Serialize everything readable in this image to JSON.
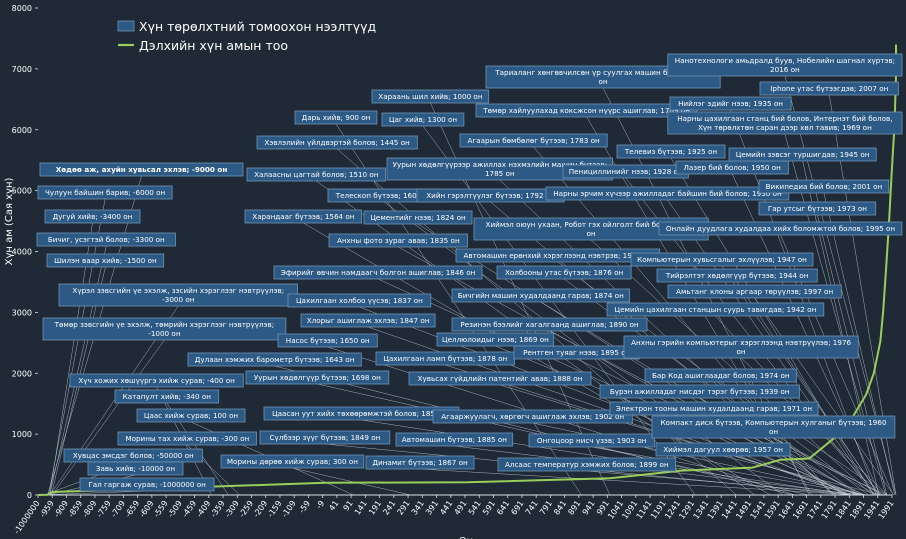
{
  "chart_data": {
    "type": "line",
    "title": "",
    "xlabel": "Он",
    "ylabel": "Хүн ам (Сая хүн)",
    "ylim": [
      0,
      8000
    ],
    "yticks": [
      0,
      1000,
      2000,
      3000,
      4000,
      5000,
      6000,
      7000,
      8000
    ],
    "xticks": [
      "-1000000",
      "-959",
      "-909",
      "-859",
      "-809",
      "-759",
      "-709",
      "-659",
      "-609",
      "-559",
      "-509",
      "-459",
      "-409",
      "-359",
      "-309",
      "-259",
      "-209",
      "-159",
      "-109",
      "-59",
      "-9",
      "41",
      "91",
      "141",
      "191",
      "241",
      "291",
      "341",
      "391",
      "441",
      "491",
      "541",
      "591",
      "641",
      "691",
      "741",
      "791",
      "841",
      "891",
      "941",
      "991",
      "1041",
      "1091",
      "1141",
      "1191",
      "1241",
      "1291",
      "1341",
      "1391",
      "1441",
      "1491",
      "1541",
      "1591",
      "1641",
      "1691",
      "1741",
      "1791",
      "1841",
      "1891",
      "1941",
      "1991"
    ],
    "legend": [
      {
        "label": "Хүн төрөлхтний томоохон нээлтүүд",
        "color": "#2c5a85"
      },
      {
        "label": "Дэлхийн хүн амын тоо",
        "color": "#9acd5a"
      }
    ],
    "series": [
      {
        "name": "Дэлхийн хүн амын тоо",
        "color": "#9acd5a",
        "points": [
          [
            -1000000,
            0
          ],
          [
            -10000,
            4
          ],
          [
            -1000,
            50
          ],
          [
            1,
            200
          ],
          [
            500,
            210
          ],
          [
            1000,
            275
          ],
          [
            1250,
            400
          ],
          [
            1500,
            450
          ],
          [
            1600,
            580
          ],
          [
            1700,
            600
          ],
          [
            1800,
            980
          ],
          [
            1850,
            1260
          ],
          [
            1900,
            1650
          ],
          [
            1927,
            2000
          ],
          [
            1950,
            2520
          ],
          [
            1960,
            3020
          ],
          [
            1970,
            3700
          ],
          [
            1980,
            4440
          ],
          [
            1990,
            5300
          ],
          [
            2000,
            6100
          ],
          [
            2010,
            6900
          ],
          [
            2016,
            7400
          ]
        ]
      }
    ],
    "annotations": [
      {
        "text": "Хөдөө аж, ахуйн хувьсал эхлэв; -9000 он",
        "year": -9000,
        "y": 5370,
        "bold": true
      },
      {
        "text": "Чулуун байшин барив; -6000 он",
        "year": -6000,
        "y": 4990
      },
      {
        "text": "Дугуй хийв; -3400 он",
        "year": -3400,
        "y": 4620
      },
      {
        "text": "Бичиг, усэгтэй болов; -3300 он",
        "year": -3300,
        "y": 4250
      },
      {
        "text": "Шилэн ваар хийв; -1500 он",
        "year": -1500,
        "y": 3880
      },
      {
        "text": "Хүрэл зэвсгийн үе эхэлж, зэсийн хэрэглээг нэвтрүүлэв; -3000 он",
        "year": -3000,
        "y": 3300
      },
      {
        "text": "Төмөр зэвсгийн үе эхэлж, төмрийн хэрэглээг нэвтрүүлэв; -1000 он",
        "year": -1000,
        "y": 2700
      },
      {
        "text": "Хүч хожих хөшүүргэ хийж сурав; -400 он",
        "year": -400,
        "y": 1910
      },
      {
        "text": "Катапулт хийв; -340 он",
        "year": -340,
        "y": 1640
      },
      {
        "text": "Цаас хийж сурав; 100 он",
        "year": 100,
        "y": 1330
      },
      {
        "text": "Морины тах хийж сурав; -300 он",
        "year": -300,
        "y": 940
      },
      {
        "text": "Хувцас эмсдэг болов; -50000 он",
        "year": -50000,
        "y": 680
      },
      {
        "text": "Завь хийв; -10000 он",
        "year": -10000,
        "y": 470
      },
      {
        "text": "Гал гаргаж сурав; -1000000 он",
        "year": -1000000,
        "y": 240
      },
      {
        "text": "Морины дөрөө хийж сурав; 300 он",
        "year": 300,
        "y": 560
      },
      {
        "text": "Дарь хийв; 900 он",
        "year": 900,
        "y": 6190
      },
      {
        "text": "Хэвлэлийн үйлдвэртэй болов; 1445 он",
        "year": 1445,
        "y": 5810
      },
      {
        "text": "Халаасны цагтай болов; 1510 он",
        "year": 1510,
        "y": 5220
      },
      {
        "text": "Телескоп бүтээв; 1608 он",
        "year": 1608,
        "y": 4890
      },
      {
        "text": "Харандааг бүтээв; 1564 он",
        "year": 1564,
        "y": 4530
      },
      {
        "text": "Цементийг нээв; 1824 он",
        "year": 1824,
        "y": 4520
      },
      {
        "text": "Анхны фото зураг авав; 1835 он",
        "year": 1835,
        "y": 4180
      },
      {
        "text": "Эфирийг өвчин намдаагч болгон ашиглав; 1846 он",
        "year": 1846,
        "y": 3640
      },
      {
        "text": "Цахилгаан холбоо үүсэв; 1837 он",
        "year": 1837,
        "y": 3190
      },
      {
        "text": "Хлорыг ашиглаж эхлэв; 1847 он",
        "year": 1847,
        "y": 2860
      },
      {
        "text": "Насос бүтээв; 1650 он",
        "year": 1650,
        "y": 2550
      },
      {
        "text": "Дулаан хэмжих барометр бүтээв; 1643 он",
        "year": 1643,
        "y": 2240
      },
      {
        "text": "Уурын хөдөлгүүр бүтээв; 1698 он",
        "year": 1698,
        "y": 1940
      },
      {
        "text": "Цаасан уут хийх төхөөрөмжтэй болов; 1852 он",
        "year": 1852,
        "y": 1370
      },
      {
        "text": "Сүлбээр зүүг бүтээв; 1849 он",
        "year": 1849,
        "y": 980
      },
      {
        "text": "Автомашин бүтээв; 1885 он",
        "year": 1885,
        "y": 940
      },
      {
        "text": "Динамит бүтээв; 1867 он",
        "year": 1867,
        "y": 560
      },
      {
        "text": "Хараань шил хийв; 1000 он",
        "year": 1000,
        "y": 6520
      },
      {
        "text": "Цаг хийв; 1300 он",
        "year": 1300,
        "y": 6170
      },
      {
        "text": "Агаарын бөмбөлөг бүтээв; 1783 он",
        "year": 1783,
        "y": 5790
      },
      {
        "text": "Уурын хөдөлгүүрээр ажиллах нэхмэлийн машин бүтээв; 1785 он",
        "year": 1785,
        "y": 5300
      },
      {
        "text": "Хийн гэрэлтүүлэг бүтээв; 1792 он",
        "year": 1792,
        "y": 4870
      },
      {
        "text": "Автомашин ерөнхий хэрэглээнд нэвтрэв; 1908 он",
        "year": 1908,
        "y": 3960
      },
      {
        "text": "Холбооны утас бүтээв; 1876 он",
        "year": 1876,
        "y": 3680
      },
      {
        "text": "Бичгийн машин худалдаанд гарав; 1874 он",
        "year": 1874,
        "y": 3330
      },
      {
        "text": "Резинэн бээлийг хагалгаанд ашиглав; 1890 он",
        "year": 1890,
        "y": 2800
      },
      {
        "text": "Целлюлоидыг нээв; 1869 он",
        "year": 1869,
        "y": 2500
      },
      {
        "text": "Цахилгаан ламп бүтээв; 1878 он",
        "year": 1878,
        "y": 2240
      },
      {
        "text": "Рентген туяаг нээв; 1895 он",
        "year": 1895,
        "y": 2340
      },
      {
        "text": "Хувьсах гүйдлийн патентийг авав; 1888 он",
        "year": 1888,
        "y": 1920
      },
      {
        "text": "Агааржуулагч, хөргөгч ашиглаж эхлэв; 1902 он",
        "year": 1902,
        "y": 1340
      },
      {
        "text": "Онгоцоор нисч үзэв; 1903 он",
        "year": 1903,
        "y": 920
      },
      {
        "text": "Алсаас температур хэмжих болов; 1899 он",
        "year": 1899,
        "y": 540
      },
      {
        "text": "Тариаланг хөнгөвчилсөн үр суулгах машин бүтээв; 1701 он",
        "year": 1701,
        "y": 6830
      },
      {
        "text": "Төмөр хайлуулахад коксжсон нүүрс ашиглав; 1709 он",
        "year": 1709,
        "y": 6310
      },
      {
        "text": "Пенициллинийг нээв; 1928 он",
        "year": 1928,
        "y": 5330
      },
      {
        "text": "Нарны эрчим хүчээр ажилладаг байшин бий болов; 1930 он",
        "year": 1930,
        "y": 4930
      },
      {
        "text": "Хиймэл оюун ухаан, Робот гэх ойлголт бий болов; 1921 он",
        "year": 1921,
        "y": 4440
      },
      {
        "text": "Телевиз бүтээв; 1925 он",
        "year": 1925,
        "y": 5610
      },
      {
        "text": "Нийлэг эдийг нээв; 1935 он",
        "year": 1935,
        "y": 6420
      },
      {
        "text": "Лазер бий болов; 1950 он",
        "year": 1950,
        "y": 5360
      },
      {
        "text": "Нанотехнологи амьдралд буув, Нобелийн шагнал хүртэв; 2016 он",
        "year": 2016,
        "y": 7030
      },
      {
        "text": "Iphone утас бүтээгдэв; 2007 он",
        "year": 2007,
        "y": 6660
      },
      {
        "text": "Нарны цахилгаан станц бий болов, Интернэт бий болов, Хүн төрөлхтөн саран дээр хөл тавив; 1969 он",
        "year": 1969,
        "y": 6010
      },
      {
        "text": "Цемийн зэвсэг туршигдав; 1945 он",
        "year": 1945,
        "y": 5570
      },
      {
        "text": "Википедиа бий болов; 2001 он",
        "year": 2001,
        "y": 5070
      },
      {
        "text": "Гар утсыг бүтээв; 1973 он",
        "year": 1973,
        "y": 4740
      },
      {
        "text": "Онлайн дуудлага худалдаа хийх боломжтой болов; 1995 он",
        "year": 1995,
        "y": 4350
      },
      {
        "text": "Компьютерын хувьсгалыг эхлүүлэв; 1947 он",
        "year": 1947,
        "y": 3870
      },
      {
        "text": "Тийрэлтэт хөдөлгүүр бүтээв; 1944 он",
        "year": 1944,
        "y": 3620
      },
      {
        "text": "Амьтанг клоны аргаар төрүүлэв; 1997 он",
        "year": 1997,
        "y": 3350
      },
      {
        "text": "Цемийн цахилгаан станцын суурь тавигдав; 1942 он",
        "year": 1942,
        "y": 3060
      },
      {
        "text": "Анхны гэрийн компьютерыг хэрэглээнд нэвтрүүлэв; 1976 он",
        "year": 1976,
        "y": 2430
      },
      {
        "text": "Бар Код ашиглаадаг болов; 1974 он",
        "year": 1974,
        "y": 1990
      },
      {
        "text": "Бүрэн ажилладаг нисдэг тэрэг бүтээв; 1939 он",
        "year": 1939,
        "y": 1730
      },
      {
        "text": "Электрон тооны машин худалдаанд гарав; 1971 он",
        "year": 1971,
        "y": 1480
      },
      {
        "text": "Компакт диск бүтээв, Компьютерын хулганыг бүтээв; 1960 он",
        "year": 1960,
        "y": 1140
      },
      {
        "text": "Хиймэл дагуул хөөрөв; 1957 он",
        "year": 1957,
        "y": 760
      }
    ]
  }
}
